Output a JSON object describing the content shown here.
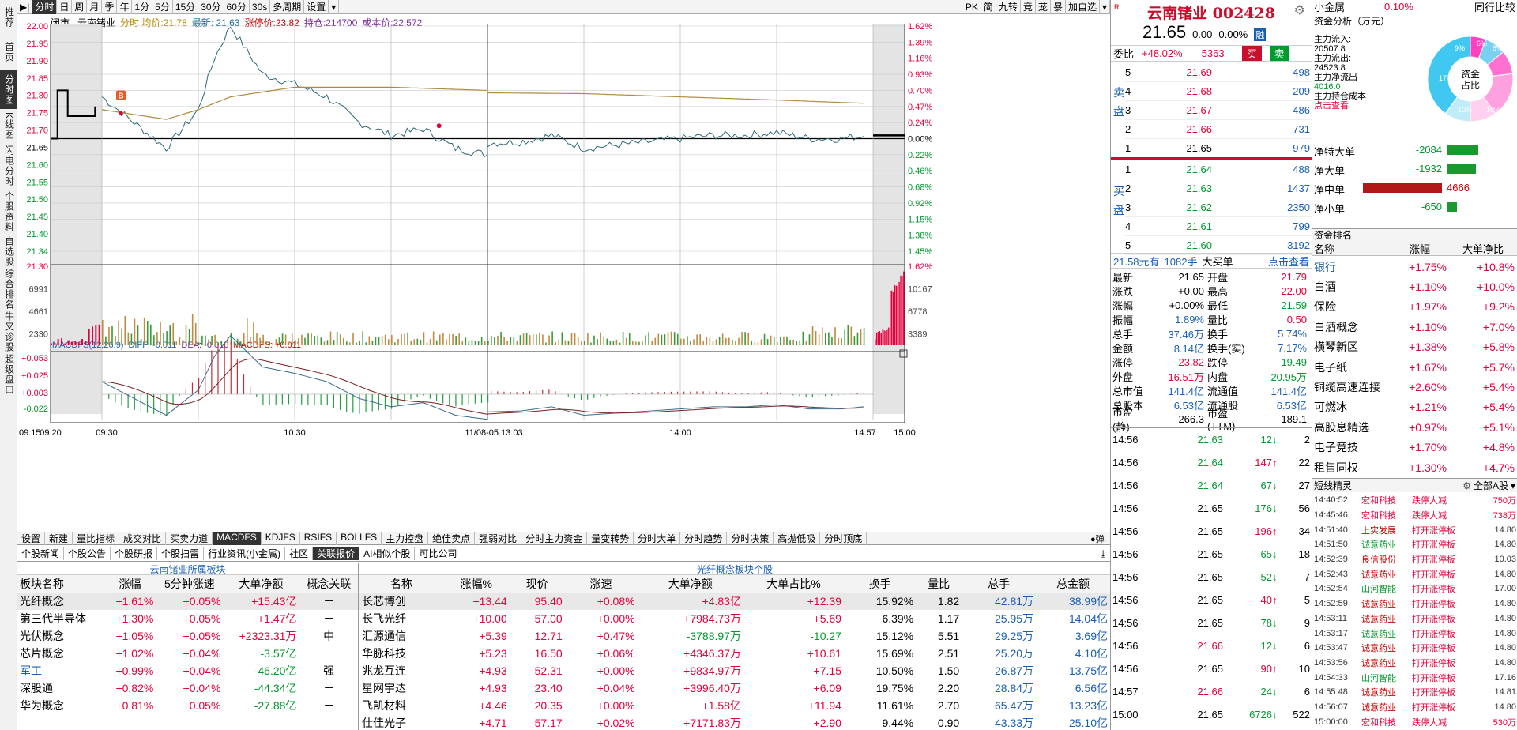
{
  "leftnav": [
    "推荐",
    "首页",
    "分时图",
    "K线图",
    "闪电分时",
    "个股资料",
    "自选股",
    "综合排名",
    "牛叉诊股",
    "超级盘口"
  ],
  "periods": [
    "分时",
    "日",
    "周",
    "月",
    "季",
    "年",
    "1分",
    "5分",
    "15分",
    "30分",
    "60分",
    "30s",
    "多周期",
    "设置"
  ],
  "toolbar_right": [
    "PK",
    "简",
    "九转",
    "竞",
    "茏",
    "暴",
    "加自选"
  ],
  "chart_header": {
    "status": "闭市",
    "name": "云南锗业",
    "line_label": "分时",
    "avg_label": "均价:",
    "avg": "21.78",
    "latest_label": "最新:",
    "latest": "21.63",
    "limit_label": "涨停价:",
    "limit": "23.82",
    "hold_label": "持仓:",
    "hold": "214700",
    "cost_label": "成本价:",
    "cost": "22.572"
  },
  "price_axis": [
    "22.00",
    "21.95",
    "21.90",
    "21.85",
    "21.80",
    "21.75",
    "21.70",
    "21.65",
    "21.60",
    "21.55",
    "21.50",
    "21.45",
    "21.40",
    "21.34"
  ],
  "pct_axis": [
    "1.62%",
    "1.39%",
    "1.16%",
    "0.93%",
    "0.70%",
    "0.47%",
    "0.24%",
    "0.00%",
    "0.22%",
    "0.46%",
    "0.68%",
    "0.92%",
    "1.15%",
    "1.38%",
    "1.45%"
  ],
  "vol_axis_left": [
    "21.30",
    "6991",
    "4661",
    "2330"
  ],
  "vol_axis_right": [
    "1.62%",
    "10167",
    "6778",
    "3389"
  ],
  "macd_header": {
    "name": "MACDFS(12,26,9)",
    "diff": "DIFF: -0.011",
    "dea": "DEA: -0.016",
    "macd": "MACDFS: +0.011"
  },
  "macd_axis": [
    "+0.053",
    "+0.025",
    "+0.003",
    "-0.022"
  ],
  "time_axis": [
    "09:15",
    "09:20",
    "09:30",
    "10:30",
    "11/08-05 13:03",
    "14:00",
    "14:57",
    "15:00"
  ],
  "chart_data": {
    "type": "line",
    "title": "",
    "ylim": [
      21.3,
      22.0
    ],
    "base_price": 21.65,
    "pre_market": {
      "x": [
        "09:15",
        "09:17",
        "09:18",
        "09:20",
        "09:25",
        "09:28"
      ],
      "values": [
        21.65,
        21.8,
        21.8,
        21.72,
        21.72,
        21.75
      ]
    },
    "series": [
      {
        "name": "分时",
        "x": [
          "09:30",
          "09:40",
          "09:50",
          "10:00",
          "10:05",
          "10:10",
          "10:20",
          "10:30",
          "10:40",
          "10:50",
          "11:00",
          "11:10",
          "11:20",
          "11:30",
          "13:10",
          "13:20",
          "13:30",
          "13:40",
          "13:50",
          "14:00",
          "14:10",
          "14:20",
          "14:30",
          "14:40",
          "14:50",
          "14:57"
        ],
        "values": [
          21.78,
          21.7,
          21.62,
          21.74,
          21.9,
          22.0,
          21.85,
          21.82,
          21.78,
          21.7,
          21.66,
          21.68,
          21.62,
          21.6,
          21.64,
          21.66,
          21.62,
          21.63,
          21.64,
          21.65,
          21.66,
          21.66,
          21.67,
          21.65,
          21.65,
          21.66
        ]
      },
      {
        "name": "均价",
        "x": [
          "09:30",
          "09:50",
          "10:00",
          "10:10",
          "10:30",
          "11:00",
          "11:30",
          "13:30",
          "14:00",
          "14:30",
          "14:57"
        ],
        "values": [
          21.74,
          21.71,
          21.74,
          21.78,
          21.81,
          21.81,
          21.8,
          21.79,
          21.78,
          21.77,
          21.76
        ]
      }
    ],
    "volume_max": 9000,
    "macd_range": [
      -0.035,
      0.06
    ]
  },
  "indicator_tabs": [
    "设置",
    "新建",
    "量比指标",
    "成交对比",
    "买卖力道",
    "MACDFS",
    "KDJFS",
    "RSIFS",
    "BOLLFS",
    "主力控盘",
    "绝佳卖点",
    "强弱对比",
    "分时主力资金",
    "量变转势",
    "分时大单",
    "分时趋势",
    "分时决策",
    "高抛低吸",
    "分时顶底"
  ],
  "info_tabs": [
    "个股新闻",
    "个股公告",
    "个股研报",
    "个股扫雷",
    "行业资讯(小金属)",
    "社区",
    "关联报价",
    "AI相似个股",
    "可比公司"
  ],
  "sector_table": {
    "title": "云南锗业所属板块",
    "headers": [
      "板块名称",
      "涨幅",
      "5分钟涨速",
      "大单净额",
      "概念关联"
    ],
    "rows": [
      [
        "光纤概念",
        "+1.61%",
        "+0.05%",
        "+15.43亿",
        "－"
      ],
      [
        "第三代半导体",
        "+1.30%",
        "+0.05%",
        "+1.47亿",
        "－"
      ],
      [
        "光伏概念",
        "+1.05%",
        "+0.05%",
        "+2323.31万",
        "中"
      ],
      [
        "芯片概念",
        "+1.02%",
        "+0.04%",
        "-3.57亿",
        "－"
      ],
      [
        "军工",
        "+0.99%",
        "+0.04%",
        "-46.20亿",
        "强"
      ],
      [
        "深股通",
        "+0.82%",
        "+0.04%",
        "-44.34亿",
        "－"
      ],
      [
        "华为概念",
        "+0.81%",
        "+0.05%",
        "-27.88亿",
        "－"
      ]
    ]
  },
  "stock_table": {
    "title": "光纤概念板块个股",
    "headers": [
      "名称",
      "涨幅%",
      "现价",
      "涨速",
      "大单净额",
      "大单占比%",
      "换手",
      "量比",
      "总手",
      "总金额"
    ],
    "rows": [
      [
        "长芯博创",
        "+13.44",
        "95.40",
        "+0.08%",
        "+4.83亿",
        "+12.39",
        "15.92%",
        "1.82",
        "42.81万",
        "38.99亿"
      ],
      [
        "长飞光纤",
        "+10.00",
        "57.00",
        "+0.00%",
        "+7984.73万",
        "+5.69",
        "6.39%",
        "1.17",
        "25.95万",
        "14.04亿"
      ],
      [
        "汇源通信",
        "+5.39",
        "12.71",
        "+0.47%",
        "-3788.97万",
        "-10.27",
        "15.12%",
        "5.51",
        "29.25万",
        "3.69亿"
      ],
      [
        "华脉科技",
        "+5.23",
        "16.50",
        "+0.06%",
        "+4346.37万",
        "+10.61",
        "15.69%",
        "2.51",
        "25.20万",
        "4.10亿"
      ],
      [
        "兆龙互连",
        "+4.93",
        "52.31",
        "+0.00%",
        "+9834.97万",
        "+7.15",
        "10.50%",
        "1.50",
        "26.87万",
        "13.75亿"
      ],
      [
        "星网宇达",
        "+4.93",
        "23.40",
        "+0.04%",
        "+3996.40万",
        "+6.09",
        "19.75%",
        "2.20",
        "28.84万",
        "6.56亿"
      ],
      [
        "飞凯材料",
        "+4.46",
        "20.35",
        "+0.00%",
        "+1.58亿",
        "+11.94",
        "11.61%",
        "2.70",
        "65.47万",
        "13.23亿"
      ],
      [
        "仕佳光子",
        "+4.71",
        "57.17",
        "+0.02%",
        "+7171.83万",
        "+2.90",
        "9.44%",
        "0.90",
        "43.33万",
        "25.10亿"
      ]
    ]
  },
  "quote": {
    "name": "云南锗业",
    "code": "002428",
    "price": "21.65",
    "change": "0.00",
    "pct": "0.00%",
    "tag": "融",
    "wb_label": "委比",
    "wb": "+48.02%",
    "wc": "5363",
    "buy": "买",
    "sell": "卖",
    "sell_side_label": "卖盘",
    "buy_side_label": "买盘",
    "asks": [
      [
        "5",
        "21.69",
        "498"
      ],
      [
        "4",
        "21.68",
        "209"
      ],
      [
        "3",
        "21.67",
        "486"
      ],
      [
        "2",
        "21.66",
        "731"
      ],
      [
        "1",
        "21.65",
        "979"
      ]
    ],
    "bids": [
      [
        "1",
        "21.64",
        "488"
      ],
      [
        "2",
        "21.63",
        "1437"
      ],
      [
        "3",
        "21.62",
        "2350"
      ],
      [
        "4",
        "21.61",
        "799"
      ],
      [
        "5",
        "21.60",
        "3192"
      ]
    ],
    "big_order": {
      "price": "21.58元有",
      "qty": "1082手",
      "label": "大买单",
      "link": "点击查看"
    },
    "stats": [
      [
        "最新",
        "21.65",
        "开盘",
        "21.79"
      ],
      [
        "涨跌",
        "+0.00",
        "最高",
        "22.00"
      ],
      [
        "涨幅",
        "+0.00%",
        "最低",
        "21.59"
      ],
      [
        "振幅",
        "1.89%",
        "量比",
        "0.50"
      ],
      [
        "总手",
        "37.46万",
        "换手",
        "5.74%"
      ],
      [
        "金额",
        "8.14亿",
        "换手(实)",
        "7.17%"
      ],
      [
        "涨停",
        "23.82",
        "跌停",
        "19.49"
      ],
      [
        "外盘",
        "16.51万",
        "内盘",
        "20.95万"
      ],
      [
        "总市值",
        "141.4亿",
        "流通值",
        "141.4亿"
      ],
      [
        "总股本",
        "6.53亿",
        "流通股",
        "6.53亿"
      ],
      [
        "市盈(静)",
        "266.3",
        "市盈(TTM)",
        "189.1"
      ]
    ],
    "ticks": [
      [
        "14:56",
        "21.63",
        "12",
        "2"
      ],
      [
        "14:56",
        "21.64",
        "147",
        "22"
      ],
      [
        "14:56",
        "21.64",
        "67",
        "27"
      ],
      [
        "14:56",
        "21.65",
        "176",
        "56"
      ],
      [
        "14:56",
        "21.65",
        "196",
        "34"
      ],
      [
        "14:56",
        "21.65",
        "65",
        "18"
      ],
      [
        "14:56",
        "21.65",
        "52",
        "7"
      ],
      [
        "14:56",
        "21.65",
        "40",
        "5"
      ],
      [
        "14:56",
        "21.65",
        "78",
        "9"
      ],
      [
        "14:56",
        "21.66",
        "12",
        "6"
      ],
      [
        "14:56",
        "21.65",
        "90",
        "10"
      ],
      [
        "14:57",
        "21.66",
        "24",
        "6"
      ],
      [
        "15:00",
        "21.65",
        "6726",
        "522"
      ]
    ]
  },
  "right": {
    "sector": "小金属",
    "sector_pct": "0.10%",
    "peer_label": "同行比较",
    "fund_title": "资金分析（万元）",
    "fund": [
      [
        "主力流入:",
        "20507.8"
      ],
      [
        "主力流出:",
        "24523.8"
      ],
      [
        "主力净流出",
        "4016.0"
      ],
      [
        "主力持仓成本",
        ""
      ]
    ],
    "fund_link": "点击查看",
    "donut_center": "资金占比",
    "donut_labels": [
      "6%",
      "8%",
      "9%",
      "17%",
      "10%",
      "10%"
    ],
    "net": [
      [
        "净特大单",
        "-2084",
        40
      ],
      [
        "净大单",
        "-1932",
        37
      ],
      [
        "净中单",
        "4666",
        100
      ],
      [
        "净小单",
        "-650",
        13
      ]
    ],
    "rank_title": "资金排名",
    "rank_headers": [
      "名称",
      "涨幅",
      "大单净比"
    ],
    "rank": [
      [
        "银行",
        "+1.75%",
        "+10.8%"
      ],
      [
        "白酒",
        "+1.10%",
        "+10.0%"
      ],
      [
        "保险",
        "+1.97%",
        "+9.2%"
      ],
      [
        "白酒概念",
        "+1.10%",
        "+7.0%"
      ],
      [
        "横琴新区",
        "+1.38%",
        "+5.8%"
      ],
      [
        "电子纸",
        "+1.67%",
        "+5.7%"
      ],
      [
        "铜缆高速连接",
        "+2.60%",
        "+5.4%"
      ],
      [
        "可燃冰",
        "+1.21%",
        "+5.4%"
      ],
      [
        "高股息精选",
        "+0.97%",
        "+5.1%"
      ],
      [
        "电子竞技",
        "+1.70%",
        "+4.8%"
      ],
      [
        "租售同权",
        "+1.30%",
        "+4.7%"
      ]
    ],
    "short_title": "短线精灵",
    "short_filter": "全部A股",
    "short": [
      [
        "14:40:52",
        "宏和科技",
        "跌停大减",
        "750万"
      ],
      [
        "14:45:46",
        "宏和科技",
        "跌停大减",
        "738万"
      ],
      [
        "14:51:40",
        "上实发展",
        "打开涨停板",
        "14.80"
      ],
      [
        "14:51:50",
        "诚意药业",
        "打开涨停板",
        "14.80"
      ],
      [
        "14:52:39",
        "良信股份",
        "打开涨停板",
        "10.03"
      ],
      [
        "14:52:43",
        "诚意药业",
        "打开涨停板",
        "14.80"
      ],
      [
        "14:52:54",
        "山河智能",
        "打开涨停板",
        "17.00"
      ],
      [
        "14:52:59",
        "诚意药业",
        "打开涨停板",
        "14.80"
      ],
      [
        "14:53:11",
        "诚意药业",
        "打开涨停板",
        "14.80"
      ],
      [
        "14:53:17",
        "诚意药业",
        "打开涨停板",
        "14.80"
      ],
      [
        "14:53:47",
        "诚意药业",
        "打开涨停板",
        "14.80"
      ],
      [
        "14:53:56",
        "诚意药业",
        "打开涨停板",
        "14.80"
      ],
      [
        "14:54:33",
        "山河智能",
        "打开涨停板",
        "17.16"
      ],
      [
        "14:55:48",
        "诚意药业",
        "打开涨停板",
        "14.81"
      ],
      [
        "14:56:07",
        "诚意药业",
        "打开涨停板",
        "14.80"
      ],
      [
        "15:00:00",
        "宏和科技",
        "跌停大减",
        "530万"
      ]
    ]
  }
}
